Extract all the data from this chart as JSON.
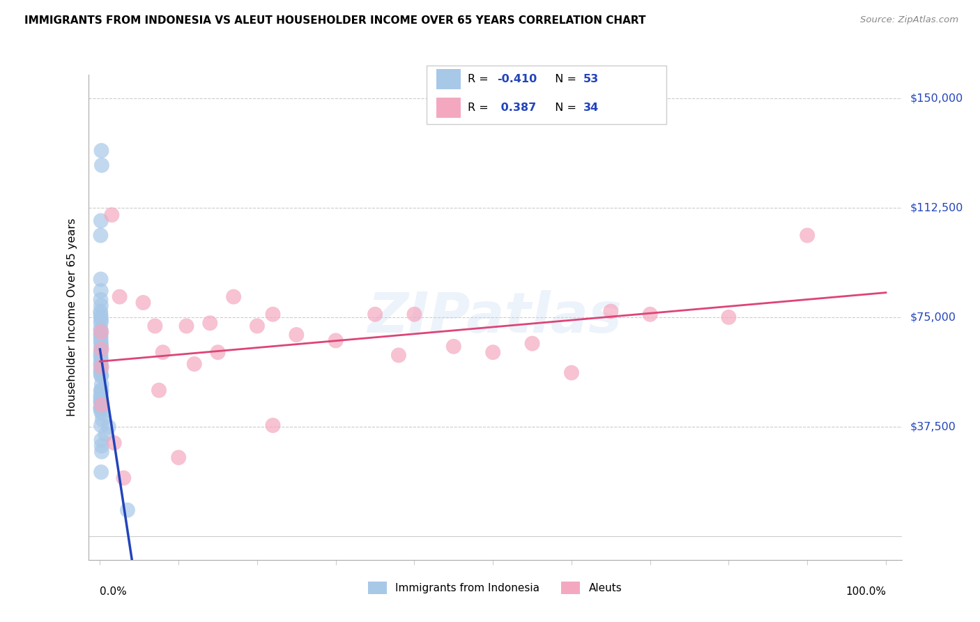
{
  "title": "IMMIGRANTS FROM INDONESIA VS ALEUT HOUSEHOLDER INCOME OVER 65 YEARS CORRELATION CHART",
  "source": "Source: ZipAtlas.com",
  "ylabel": "Householder Income Over 65 years",
  "legend_label1": "Immigrants from Indonesia",
  "legend_label2": "Aleuts",
  "R1": "-0.410",
  "N1": "53",
  "R2": "0.387",
  "N2": "34",
  "ytick_vals": [
    0,
    37500,
    75000,
    112500,
    150000
  ],
  "ytick_labels": [
    "",
    "$37,500",
    "$75,000",
    "$112,500",
    "$150,000"
  ],
  "color_blue": "#A8C8E8",
  "color_pink": "#F4A8C0",
  "color_blue_line": "#2244BB",
  "color_pink_line": "#DD4477",
  "watermark": "ZIPatlas",
  "blue_x": [
    0.18,
    0.22,
    0.12,
    0.08,
    0.1,
    0.11,
    0.09,
    0.13,
    0.07,
    0.09,
    0.11,
    0.14,
    0.1,
    0.08,
    0.12,
    0.09,
    0.11,
    0.1,
    0.13,
    0.15,
    0.12,
    0.1,
    0.09,
    0.11,
    0.14,
    0.08,
    0.12,
    0.1,
    0.09,
    0.13,
    0.11,
    0.15,
    0.1,
    0.12,
    0.14,
    0.08,
    0.1,
    0.25,
    0.3,
    1.1,
    0.7,
    0.18,
    0.2,
    0.22,
    0.15,
    0.17,
    0.2,
    0.19,
    0.08,
    0.09,
    0.11,
    3.5,
    0.14
  ],
  "blue_y": [
    132000,
    127000,
    108000,
    103000,
    88000,
    84000,
    81000,
    79000,
    77000,
    76000,
    75000,
    74000,
    73000,
    71000,
    70000,
    69000,
    68000,
    67000,
    66000,
    65000,
    64000,
    63000,
    62000,
    61000,
    60000,
    59000,
    58000,
    57000,
    56000,
    55000,
    50000,
    49000,
    47000,
    46000,
    45000,
    44000,
    43000,
    42000,
    40000,
    37500,
    35000,
    33000,
    31000,
    29000,
    22000,
    55000,
    52000,
    50000,
    48000,
    46000,
    44000,
    9000,
    38000
  ],
  "pink_x": [
    1.5,
    2.5,
    5.5,
    7.0,
    8.0,
    10.0,
    12.0,
    14.0,
    17.0,
    20.0,
    22.0,
    25.0,
    30.0,
    35.0,
    38.0,
    40.0,
    45.0,
    50.0,
    55.0,
    60.0,
    65.0,
    70.0,
    80.0,
    90.0,
    1.8,
    3.0,
    7.5,
    11.0,
    15.0,
    22.0,
    0.15,
    0.18,
    0.2,
    0.22
  ],
  "pink_y": [
    110000,
    82000,
    80000,
    72000,
    63000,
    27000,
    59000,
    73000,
    82000,
    72000,
    38000,
    69000,
    67000,
    76000,
    62000,
    76000,
    65000,
    63000,
    66000,
    56000,
    77000,
    76000,
    75000,
    103000,
    32000,
    20000,
    50000,
    72000,
    63000,
    76000,
    70000,
    64000,
    58000,
    45000
  ]
}
